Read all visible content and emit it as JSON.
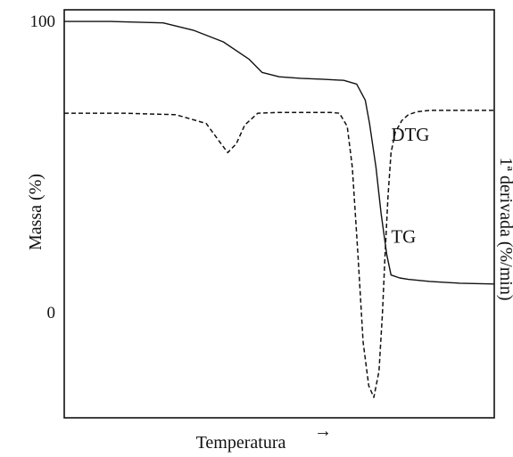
{
  "chart_data": {
    "type": "line",
    "xlabel": "Temperatura",
    "xlabel_arrow": "→",
    "ylabel": "Massa (%)",
    "ylabel_right": "1ª derivada (%/min)",
    "y_ticks": [
      {
        "value": 100,
        "label": "100"
      },
      {
        "value": 0,
        "label": "0"
      }
    ],
    "xlim": [
      0,
      100
    ],
    "ylim": [
      -36,
      104
    ],
    "grid": false,
    "series": [
      {
        "name": "TG",
        "style": "solid",
        "color": "#111111",
        "label_at": [
          76,
          24
        ],
        "x": [
          0,
          11,
          23,
          30,
          37,
          43,
          46,
          50,
          55,
          60,
          65,
          68,
          70,
          71,
          72.5,
          73.7,
          75,
          76,
          78,
          80,
          85,
          92,
          100
        ],
        "y": [
          100,
          100,
          99.5,
          97,
          93,
          87,
          82.5,
          81,
          80.5,
          80.2,
          79.8,
          78.5,
          73,
          65,
          50,
          34,
          20,
          13,
          12,
          11.5,
          10.8,
          10.2,
          9.9
        ]
      },
      {
        "name": "DTG",
        "style": "dashed",
        "color": "#111111",
        "label_at": [
          76,
          59
        ],
        "x": [
          0,
          14,
          26,
          33,
          36.5,
          38,
          40,
          42,
          45,
          50,
          57,
          62,
          64,
          65.8,
          67,
          68.3,
          69.5,
          70.8,
          72,
          73.2,
          74,
          74.6,
          75.3,
          76,
          77,
          78.5,
          80,
          82,
          85,
          92,
          100
        ],
        "y": [
          68.5,
          68.5,
          68,
          65,
          58,
          55,
          58,
          64.5,
          68.5,
          68.8,
          68.8,
          68.8,
          68.5,
          64,
          50,
          20,
          -10,
          -25,
          -29,
          -20,
          0,
          20,
          40,
          55,
          62,
          66,
          68,
          69,
          69.5,
          69.5,
          69.5
        ]
      }
    ]
  }
}
